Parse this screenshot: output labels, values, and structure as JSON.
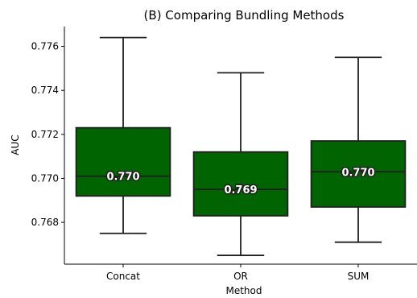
{
  "chart_data": {
    "type": "box",
    "title": "(B) Comparing Bundling Methods",
    "xlabel": "Method",
    "ylabel": "AUC",
    "categories": [
      "Concat",
      "OR",
      "SUM"
    ],
    "ylim": [
      0.7661,
      0.7769
    ],
    "yticks": [
      0.768,
      0.77,
      0.772,
      0.774,
      0.776
    ],
    "ytick_labels": [
      "0.768",
      "0.770",
      "0.772",
      "0.774",
      "0.776"
    ],
    "boxes": [
      {
        "category": "Concat",
        "whisker_low": 0.7675,
        "q1": 0.7692,
        "median": 0.7701,
        "q3": 0.7723,
        "whisker_high": 0.7764,
        "label": "0.770"
      },
      {
        "category": "OR",
        "whisker_low": 0.7665,
        "q1": 0.7683,
        "median": 0.7695,
        "q3": 0.7712,
        "whisker_high": 0.7748,
        "label": "0.769"
      },
      {
        "category": "SUM",
        "whisker_low": 0.7671,
        "q1": 0.7687,
        "median": 0.7703,
        "q3": 0.7717,
        "whisker_high": 0.7755,
        "label": "0.770"
      }
    ],
    "colors": {
      "box_fill": "#006400",
      "box_edge": "#1f1f1f",
      "median_line": "#1f1f1f",
      "label_text": "#ffffff",
      "label_outline": "#1f1f1f",
      "axis": "#000000"
    },
    "grid": false
  }
}
